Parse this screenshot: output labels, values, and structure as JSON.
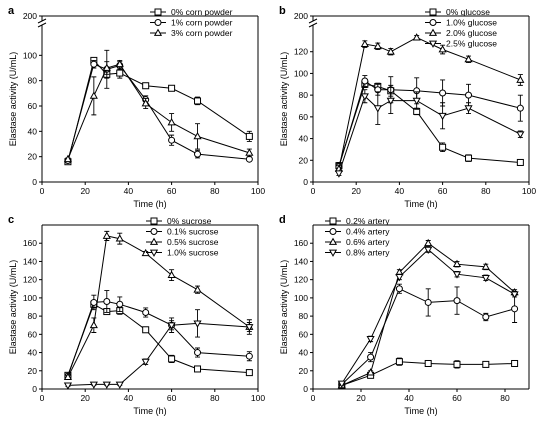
{
  "chart_data": [
    {
      "panel_label": "a",
      "type": "line",
      "xlabel": "Time (h)",
      "ylabel": "Elastase activity (U/mL)",
      "xlim": [
        0,
        100
      ],
      "xticks": [
        0,
        20,
        40,
        60,
        80,
        100
      ],
      "ylim": [
        0,
        120
      ],
      "yticks": [
        0,
        20,
        40,
        60,
        80,
        100
      ],
      "axis_break_label": "200",
      "legend_position": "top-right",
      "x": [
        12,
        24,
        30,
        36,
        48,
        60,
        72,
        96
      ],
      "series": [
        {
          "name": "0% corn powder",
          "marker": "square",
          "values": [
            16,
            96,
            85,
            86,
            76,
            74,
            64,
            36
          ],
          "errors": [
            1,
            2,
            3,
            4,
            2,
            2,
            3,
            4
          ]
        },
        {
          "name": "1% corn powder",
          "marker": "circle",
          "values": [
            17,
            93,
            89,
            92,
            65,
            33,
            22,
            18
          ],
          "errors": [
            1,
            3,
            15,
            3,
            3,
            4,
            3,
            1
          ]
        },
        {
          "name": "3% corn powder",
          "marker": "triangle-up",
          "values": [
            18,
            68,
            90,
            93,
            62,
            47,
            36,
            23
          ],
          "errors": [
            1,
            15,
            5,
            3,
            4,
            7,
            10,
            3
          ]
        }
      ]
    },
    {
      "panel_label": "b",
      "type": "line",
      "xlabel": "Time (h)",
      "ylabel": "Elastase activity (U/mL)",
      "xlim": [
        0,
        100
      ],
      "xticks": [
        0,
        20,
        40,
        60,
        80,
        100
      ],
      "ylim": [
        0,
        140
      ],
      "yticks": [
        0,
        20,
        40,
        60,
        80,
        100,
        120
      ],
      "axis_break_label": "200",
      "legend_position": "top-right",
      "x": [
        12,
        24,
        30,
        36,
        48,
        60,
        72,
        96
      ],
      "series": [
        {
          "name": "0% glucose",
          "marker": "square",
          "values": [
            15,
            90,
            88,
            84,
            65,
            32,
            22,
            18
          ],
          "errors": [
            3,
            3,
            3,
            5,
            3,
            4,
            3,
            1
          ]
        },
        {
          "name": "1.0% glucose",
          "marker": "circle",
          "values": [
            14,
            93,
            85,
            85,
            84,
            82,
            80,
            68
          ],
          "errors": [
            3,
            5,
            5,
            12,
            12,
            12,
            10,
            12
          ]
        },
        {
          "name": "2.0% glucose",
          "marker": "triangle-up",
          "values": [
            12,
            127,
            125,
            120,
            133,
            122,
            113,
            94
          ],
          "errors": [
            3,
            3,
            3,
            3,
            2,
            4,
            3,
            5
          ]
        },
        {
          "name": "2.5% glucose",
          "marker": "triangle-down",
          "values": [
            8,
            79,
            68,
            75,
            75,
            61,
            68,
            44
          ],
          "errors": [
            2,
            6,
            15,
            12,
            8,
            12,
            5,
            3
          ]
        }
      ]
    },
    {
      "panel_label": "c",
      "type": "line",
      "xlabel": "Time (h)",
      "ylabel": "Elastase activity (U/mL)",
      "xlim": [
        0,
        100
      ],
      "xticks": [
        0,
        20,
        40,
        60,
        80,
        100
      ],
      "ylim": [
        0,
        180
      ],
      "yticks": [
        0,
        20,
        40,
        60,
        80,
        100,
        120,
        140,
        160
      ],
      "axis_break_label": "",
      "legend_position": "top-right",
      "x": [
        12,
        24,
        30,
        36,
        48,
        60,
        72,
        96
      ],
      "series": [
        {
          "name": "0% sucrose",
          "marker": "square",
          "values": [
            15,
            93,
            85,
            86,
            65,
            33,
            22,
            18
          ],
          "errors": [
            2,
            4,
            3,
            4,
            3,
            4,
            3,
            1
          ]
        },
        {
          "name": "0.1% sucrose",
          "marker": "circle",
          "values": [
            14,
            95,
            96,
            93,
            84,
            70,
            40,
            36
          ],
          "errors": [
            2,
            8,
            12,
            8,
            5,
            5,
            5,
            5
          ]
        },
        {
          "name": "0.5% sucrose",
          "marker": "triangle-up",
          "values": [
            13,
            70,
            168,
            165,
            149,
            125,
            109,
            68
          ],
          "errors": [
            2,
            8,
            5,
            6,
            2,
            6,
            4,
            5
          ]
        },
        {
          "name": "1.0% sucrose",
          "marker": "triangle-down",
          "values": [
            4,
            5,
            5,
            5,
            30,
            70,
            72,
            68
          ],
          "errors": [
            1,
            1,
            1,
            1,
            3,
            8,
            15,
            8
          ]
        }
      ]
    },
    {
      "panel_label": "d",
      "type": "line",
      "xlabel": "Time (h)",
      "ylabel": "Elastase activity (U/mL)",
      "xlim": [
        0,
        90
      ],
      "xticks": [
        0,
        20,
        40,
        60,
        80
      ],
      "ylim": [
        0,
        180
      ],
      "yticks": [
        0,
        20,
        40,
        60,
        80,
        100,
        120,
        140,
        160
      ],
      "axis_break_label": "",
      "legend_position": "top-left",
      "x": [
        12,
        24,
        36,
        48,
        60,
        72,
        84
      ],
      "series": [
        {
          "name": "0.2% artery",
          "marker": "square",
          "values": [
            4,
            15,
            30,
            28,
            27,
            27,
            28
          ],
          "errors": [
            1,
            2,
            4,
            3,
            4,
            3,
            3
          ]
        },
        {
          "name": "0.4% artery",
          "marker": "circle",
          "values": [
            5,
            35,
            110,
            95,
            97,
            79,
            88
          ],
          "errors": [
            1,
            5,
            5,
            15,
            15,
            4,
            15
          ]
        },
        {
          "name": "0.6% artery",
          "marker": "triangle-up",
          "values": [
            4,
            18,
            128,
            160,
            137,
            134,
            106
          ],
          "errors": [
            1,
            2,
            3,
            3,
            3,
            3,
            3
          ]
        },
        {
          "name": "0.8% artery",
          "marker": "triangle-down",
          "values": [
            6,
            55,
            123,
            153,
            126,
            122,
            104
          ],
          "errors": [
            1,
            3,
            3,
            3,
            3,
            3,
            3
          ]
        }
      ]
    }
  ]
}
